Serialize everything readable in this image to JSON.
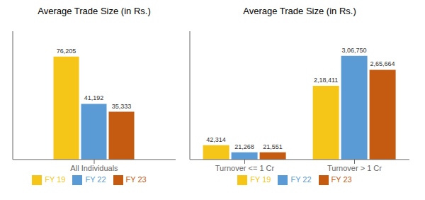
{
  "chart_data": [
    {
      "type": "bar",
      "title": "Average Trade Size (in Rs.)",
      "categories": [
        "All Individuals"
      ],
      "series": [
        {
          "name": "FY 19",
          "color": "#F5C518",
          "values": [
            76205
          ],
          "value_labels": [
            "76,205"
          ]
        },
        {
          "name": "FY 22",
          "color": "#5B9BD5",
          "values": [
            41192
          ],
          "value_labels": [
            "41,192"
          ]
        },
        {
          "name": "FY 23",
          "color": "#C55A11",
          "values": [
            35333
          ],
          "value_labels": [
            "35,333"
          ]
        }
      ],
      "ylim": [
        0,
        95000
      ],
      "tick_labels": "x",
      "data_labels": true,
      "legend": "bottom",
      "grid": false
    },
    {
      "type": "bar",
      "title": "Average Trade Size (in Rs.)",
      "categories": [
        "Turnover <= 1 Cr",
        "Turnover > 1 Cr"
      ],
      "series": [
        {
          "name": "FY 19",
          "color": "#F5C518",
          "values": [
            42314,
            218411
          ],
          "value_labels": [
            "42,314",
            "2,18,411"
          ]
        },
        {
          "name": "FY 22",
          "color": "#5B9BD5",
          "values": [
            21268,
            306750
          ],
          "value_labels": [
            "21,268",
            "3,06,750"
          ]
        },
        {
          "name": "FY 23",
          "color": "#C55A11",
          "values": [
            21551,
            265664
          ],
          "value_labels": [
            "21,551",
            "2,65,664"
          ]
        }
      ],
      "ylim": [
        0,
        380000
      ],
      "tick_labels": "x",
      "data_labels": true,
      "legend": "bottom",
      "grid": false
    }
  ]
}
